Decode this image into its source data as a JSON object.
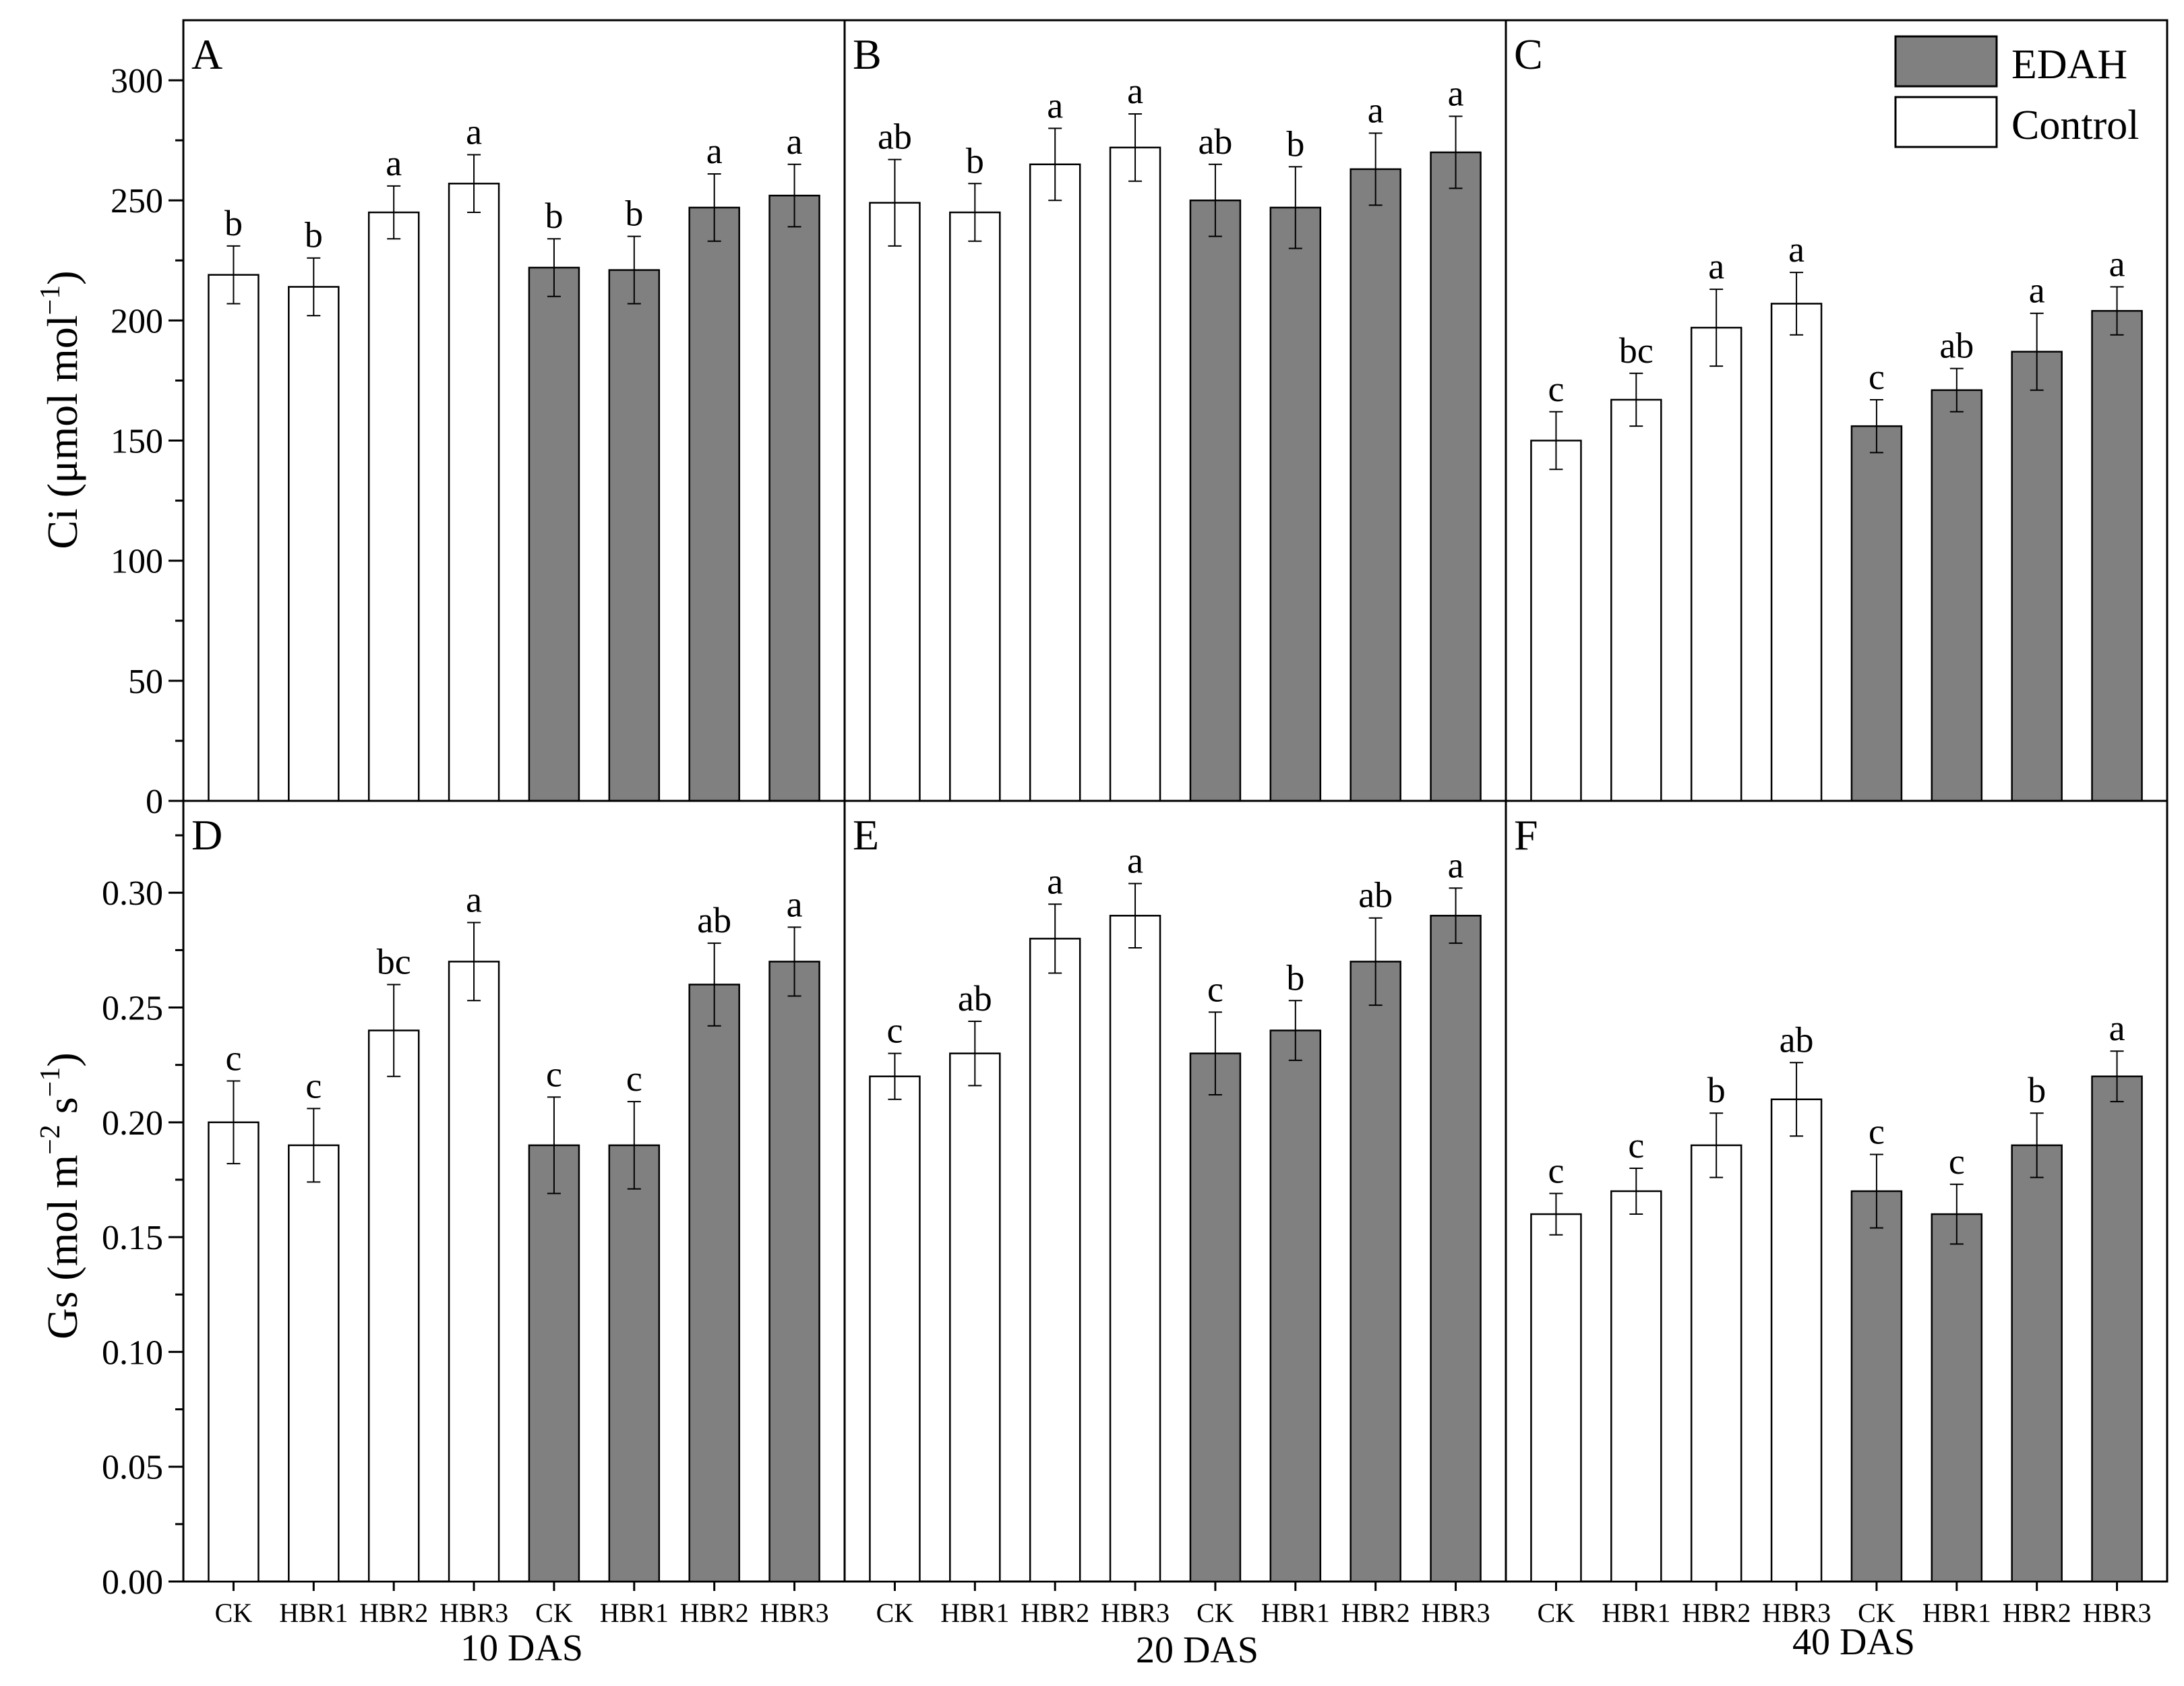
{
  "colors": {
    "edah": "#808080",
    "control": "#ffffff",
    "stroke": "#000000"
  },
  "legend": {
    "items": [
      {
        "label": "EDAH",
        "group": "edah"
      },
      {
        "label": "Control",
        "group": "control"
      }
    ]
  },
  "rows": [
    {
      "id": "ci",
      "ylabel_main": "Ci (μmol mol",
      "ylabel_sup": "−1",
      "ylabel_end": ")"
    },
    {
      "id": "gs",
      "ylabel_main": "Gs (mol m",
      "ylabel_sup1": "−2",
      "ylabel_mid": " s",
      "ylabel_sup2": "−1",
      "ylabel_end": ")"
    }
  ],
  "columns": [
    {
      "xlabel": "10 DAS"
    },
    {
      "xlabel": "20 DAS"
    },
    {
      "xlabel": "40 DAS"
    }
  ],
  "chart_data": [
    {
      "type": "bar",
      "panel": "A",
      "row": 0,
      "col": 0,
      "xlabel": "10 DAS",
      "ylabel": "Ci (μmol mol−1)",
      "ylim": [
        0,
        325
      ],
      "yticks": [
        0,
        50,
        100,
        150,
        200,
        250,
        300
      ],
      "decimals": 0,
      "categories": [
        "CK",
        "HBR1",
        "HBR2",
        "HBR3",
        "CK",
        "HBR1",
        "HBR2",
        "HBR3"
      ],
      "groups": [
        "control",
        "control",
        "control",
        "control",
        "edah",
        "edah",
        "edah",
        "edah"
      ],
      "values": [
        219,
        214,
        245,
        257,
        222,
        221,
        247,
        252
      ],
      "errors": [
        12,
        12,
        11,
        12,
        12,
        14,
        14,
        13
      ],
      "letters": [
        "b",
        "b",
        "a",
        "a",
        "b",
        "b",
        "a",
        "a"
      ]
    },
    {
      "type": "bar",
      "panel": "B",
      "row": 0,
      "col": 1,
      "xlabel": "20 DAS",
      "ylabel": "Ci (μmol mol−1)",
      "ylim": [
        0,
        325
      ],
      "yticks": [
        0,
        50,
        100,
        150,
        200,
        250,
        300
      ],
      "decimals": 0,
      "categories": [
        "CK",
        "HBR1",
        "HBR2",
        "HBR3",
        "CK",
        "HBR1",
        "HBR2",
        "HBR3"
      ],
      "groups": [
        "control",
        "control",
        "control",
        "control",
        "edah",
        "edah",
        "edah",
        "edah"
      ],
      "values": [
        249,
        245,
        265,
        272,
        250,
        247,
        263,
        270
      ],
      "errors": [
        18,
        12,
        15,
        14,
        15,
        17,
        15,
        15
      ],
      "letters": [
        "ab",
        "b",
        "a",
        "a",
        "ab",
        "b",
        "a",
        "a"
      ]
    },
    {
      "type": "bar",
      "panel": "C",
      "row": 0,
      "col": 2,
      "xlabel": "40 DAS",
      "ylabel": "Ci (μmol mol−1)",
      "ylim": [
        0,
        325
      ],
      "yticks": [
        0,
        50,
        100,
        150,
        200,
        250,
        300
      ],
      "decimals": 0,
      "categories": [
        "CK",
        "HBR1",
        "HBR2",
        "HBR3",
        "CK",
        "HBR1",
        "HBR2",
        "HBR3"
      ],
      "groups": [
        "control",
        "control",
        "control",
        "control",
        "edah",
        "edah",
        "edah",
        "edah"
      ],
      "values": [
        150,
        167,
        197,
        207,
        156,
        171,
        187,
        204
      ],
      "errors": [
        12,
        11,
        16,
        13,
        11,
        9,
        16,
        10
      ],
      "letters": [
        "c",
        "bc",
        "a",
        "a",
        "c",
        "ab",
        "a",
        "a"
      ]
    },
    {
      "type": "bar",
      "panel": "D",
      "row": 1,
      "col": 0,
      "xlabel": "10 DAS",
      "ylabel": "Gs (mol m−2 s−1)",
      "ylim": [
        0,
        0.34
      ],
      "yticks": [
        0,
        0.05,
        0.1,
        0.15,
        0.2,
        0.25,
        0.3
      ],
      "decimals": 2,
      "categories": [
        "CK",
        "HBR1",
        "HBR2",
        "HBR3",
        "CK",
        "HBR1",
        "HBR2",
        "HBR3"
      ],
      "groups": [
        "control",
        "control",
        "control",
        "control",
        "edah",
        "edah",
        "edah",
        "edah"
      ],
      "values": [
        0.2,
        0.19,
        0.24,
        0.27,
        0.19,
        0.19,
        0.26,
        0.27
      ],
      "errors": [
        0.018,
        0.016,
        0.02,
        0.017,
        0.021,
        0.019,
        0.018,
        0.015
      ],
      "letters": [
        "c",
        "c",
        "bc",
        "a",
        "c",
        "c",
        "ab",
        "a"
      ]
    },
    {
      "type": "bar",
      "panel": "E",
      "row": 1,
      "col": 1,
      "xlabel": "20 DAS",
      "ylabel": "Gs (mol m−2 s−1)",
      "ylim": [
        0,
        0.34
      ],
      "yticks": [
        0,
        0.05,
        0.1,
        0.15,
        0.2,
        0.25,
        0.3
      ],
      "decimals": 2,
      "categories": [
        "CK",
        "HBR1",
        "HBR2",
        "HBR3",
        "CK",
        "HBR1",
        "HBR2",
        "HBR3"
      ],
      "groups": [
        "control",
        "control",
        "control",
        "control",
        "edah",
        "edah",
        "edah",
        "edah"
      ],
      "values": [
        0.22,
        0.23,
        0.28,
        0.29,
        0.23,
        0.24,
        0.27,
        0.29
      ],
      "errors": [
        0.01,
        0.014,
        0.015,
        0.014,
        0.018,
        0.013,
        0.019,
        0.012
      ],
      "letters": [
        "c",
        "ab",
        "a",
        "a",
        "c",
        "b",
        "ab",
        "a"
      ]
    },
    {
      "type": "bar",
      "panel": "F",
      "row": 1,
      "col": 2,
      "xlabel": "40 DAS",
      "ylabel": "Gs (mol m−2 s−1)",
      "ylim": [
        0,
        0.34
      ],
      "yticks": [
        0,
        0.05,
        0.1,
        0.15,
        0.2,
        0.25,
        0.3
      ],
      "decimals": 2,
      "categories": [
        "CK",
        "HBR1",
        "HBR2",
        "HBR3",
        "CK",
        "HBR1",
        "HBR2",
        "HBR3"
      ],
      "groups": [
        "control",
        "control",
        "control",
        "control",
        "edah",
        "edah",
        "edah",
        "edah"
      ],
      "values": [
        0.16,
        0.17,
        0.19,
        0.21,
        0.17,
        0.16,
        0.19,
        0.22
      ],
      "errors": [
        0.009,
        0.01,
        0.014,
        0.016,
        0.016,
        0.013,
        0.014,
        0.011
      ],
      "letters": [
        "c",
        "c",
        "b",
        "ab",
        "c",
        "c",
        "b",
        "a"
      ]
    }
  ]
}
